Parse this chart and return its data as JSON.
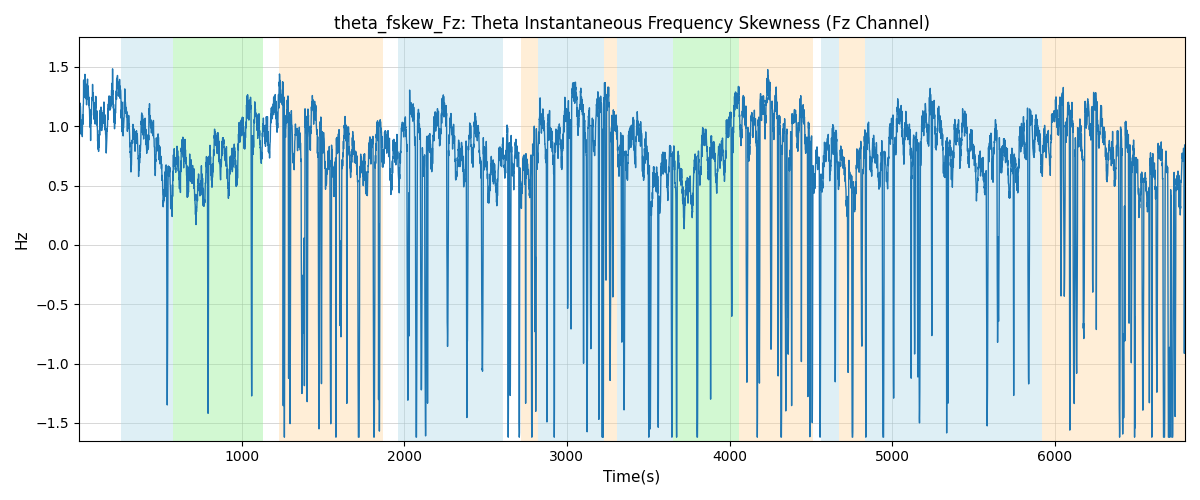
{
  "title": "theta_fskew_Fz: Theta Instantaneous Frequency Skewness (Fz Channel)",
  "xlabel": "Time(s)",
  "ylabel": "Hz",
  "xlim_start": 0,
  "xlim_end": 6800,
  "ylim_start": -1.65,
  "ylim_end": 1.75,
  "line_color": "#1f77b4",
  "line_width": 1.0,
  "grid_color": "#b0b0b0",
  "xticks": [
    1000,
    2000,
    3000,
    4000,
    5000,
    6000
  ],
  "yticks": [
    -1.5,
    -1.0,
    -0.5,
    0.0,
    0.5,
    1.0,
    1.5
  ],
  "title_fontsize": 12,
  "label_fontsize": 11,
  "segments": [
    {
      "start": 260,
      "end": 580,
      "color": "#add8e6",
      "alpha": 0.4
    },
    {
      "start": 580,
      "end": 1130,
      "color": "#90ee90",
      "alpha": 0.4
    },
    {
      "start": 1230,
      "end": 1870,
      "color": "#ffd59b",
      "alpha": 0.4
    },
    {
      "start": 1960,
      "end": 2610,
      "color": "#add8e6",
      "alpha": 0.4
    },
    {
      "start": 2720,
      "end": 2820,
      "color": "#ffd59b",
      "alpha": 0.4
    },
    {
      "start": 2820,
      "end": 3230,
      "color": "#add8e6",
      "alpha": 0.4
    },
    {
      "start": 3230,
      "end": 3310,
      "color": "#ffd59b",
      "alpha": 0.4
    },
    {
      "start": 3310,
      "end": 3650,
      "color": "#add8e6",
      "alpha": 0.4
    },
    {
      "start": 3650,
      "end": 4060,
      "color": "#90ee90",
      "alpha": 0.4
    },
    {
      "start": 4060,
      "end": 4510,
      "color": "#ffd59b",
      "alpha": 0.4
    },
    {
      "start": 4560,
      "end": 4670,
      "color": "#add8e6",
      "alpha": 0.4
    },
    {
      "start": 4670,
      "end": 4830,
      "color": "#ffd59b",
      "alpha": 0.4
    },
    {
      "start": 4830,
      "end": 5920,
      "color": "#add8e6",
      "alpha": 0.4
    },
    {
      "start": 5920,
      "end": 6800,
      "color": "#ffd59b",
      "alpha": 0.4
    }
  ],
  "seed": 42,
  "n_points": 6800
}
